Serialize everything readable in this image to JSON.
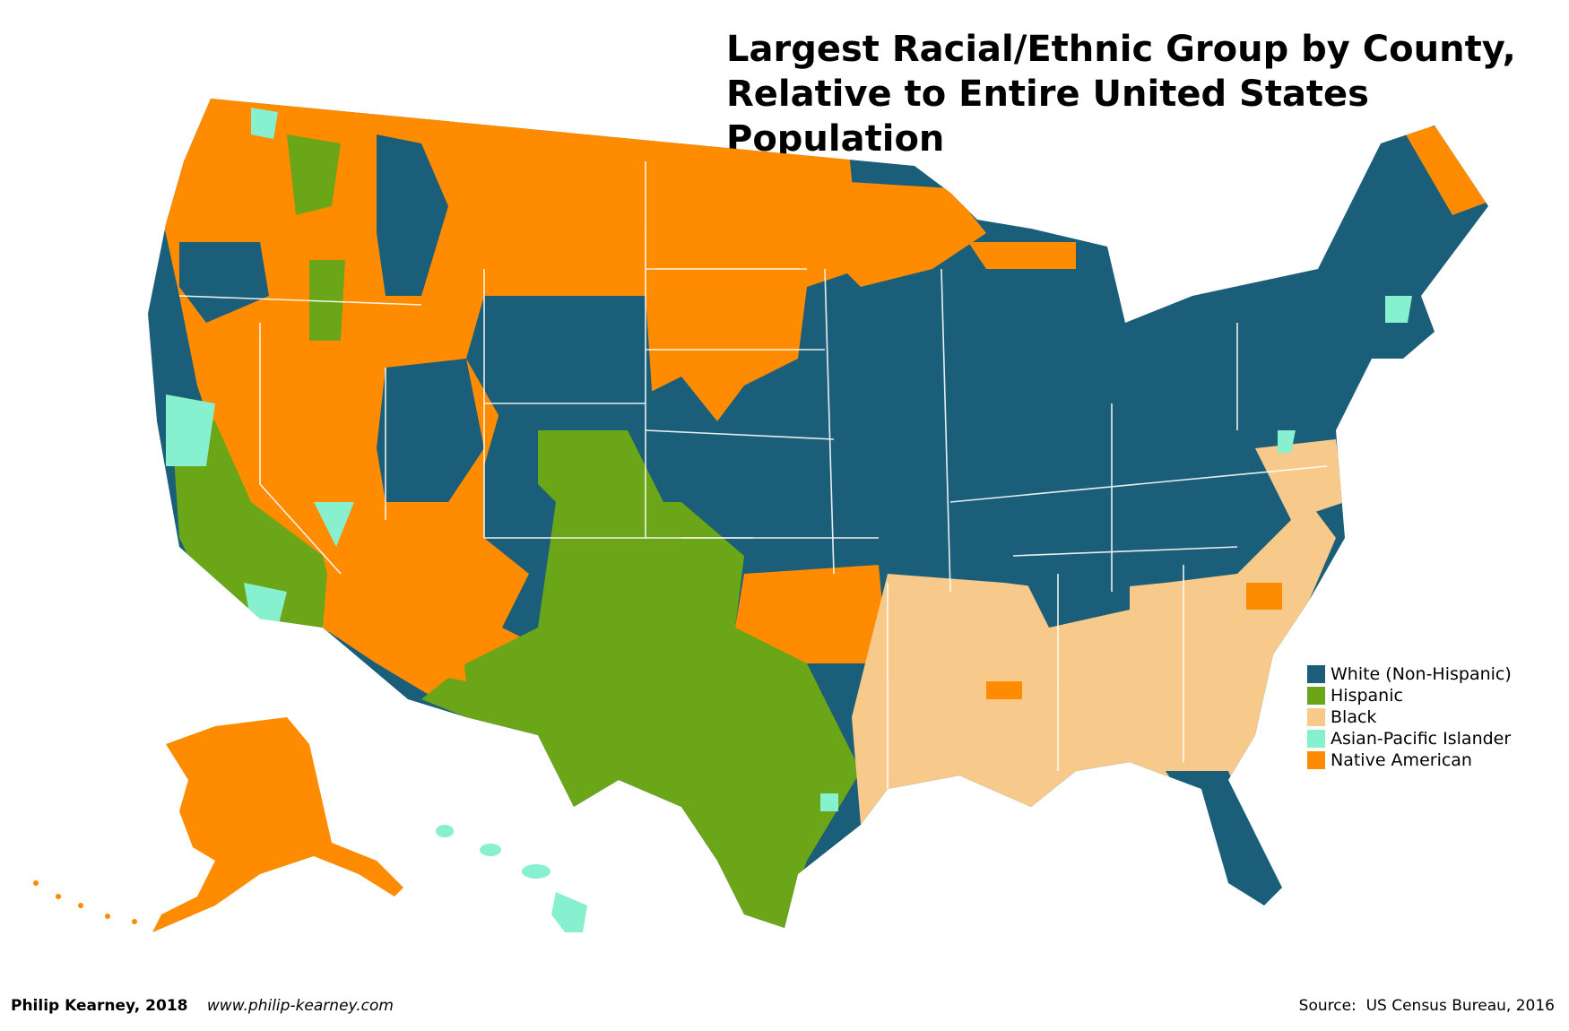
{
  "title": {
    "line1": "Largest Racial/Ethnic Group by County,",
    "line2": "Relative to Entire United States Population"
  },
  "legend": {
    "items": [
      {
        "label": "White (Non-Hispanic)",
        "color": "#1b5e7a"
      },
      {
        "label": "Hispanic",
        "color": "#6aa617"
      },
      {
        "label": "Black",
        "color": "#f7c98a"
      },
      {
        "label": "Asian-Pacific Islander",
        "color": "#86f0cf"
      },
      {
        "label": "Native American",
        "color": "#ff8b00"
      }
    ]
  },
  "footer": {
    "author": "Philip Kearney, 2018",
    "website": "www.philip-kearney.com",
    "source": "Source:  US Census Bureau, 2016"
  },
  "colors": {
    "white_non_hispanic": "#1b5e7a",
    "hispanic": "#6aa617",
    "black": "#f7c98a",
    "asian_pacific_islander": "#86f0cf",
    "native_american": "#ff8b00"
  },
  "map": {
    "regions": [
      "Contiguous United States",
      "Alaska",
      "Hawaii"
    ]
  }
}
